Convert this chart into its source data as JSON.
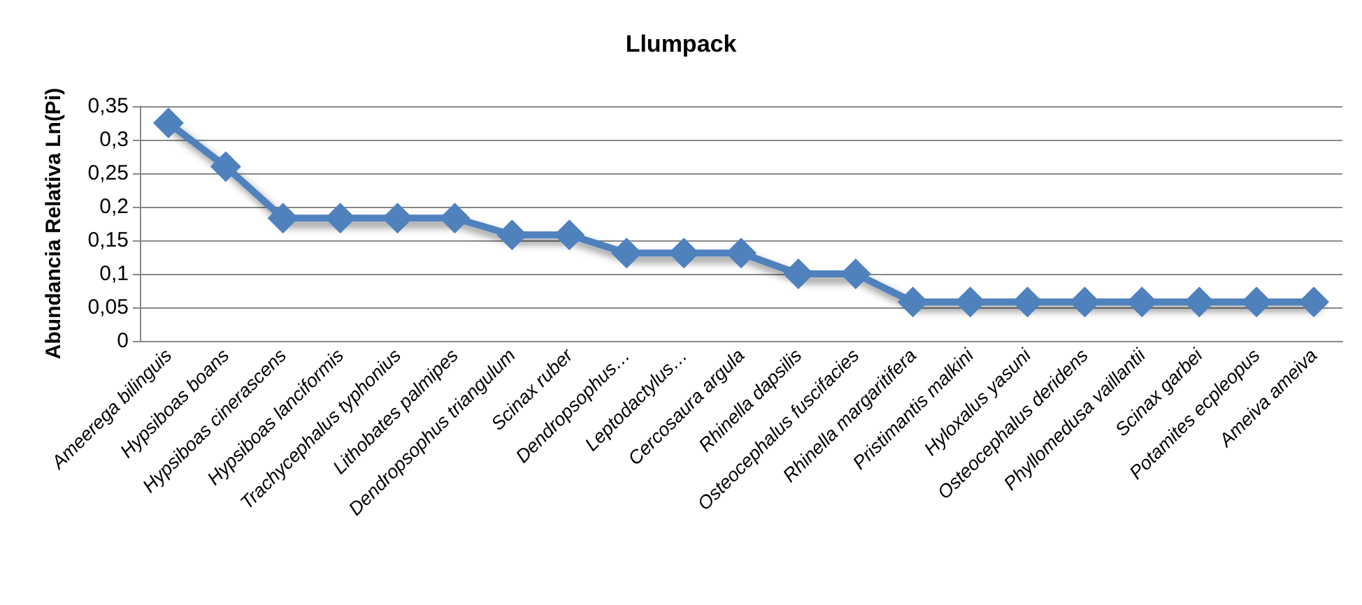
{
  "chart_data": {
    "type": "line",
    "title": "Llumpack",
    "ylabel": "Abundancia Relativa Ln(Pi)",
    "categories": [
      "Ameerega bilinguis",
      "Hypsiboas boans",
      "Hypsiboas cinerascens",
      "Hypsiboas lanciformis",
      "Trachycephalus typhonius",
      "Lithobates palmipes",
      "Dendropsophus triangulum",
      "Scinax ruber",
      "Dendropsophus…",
      "Leptodactylus…",
      "Cercosaura argula",
      "Rhinella dapsilis",
      "Osteocephalus fuscifacies",
      "Rhinella margaritifera",
      "Pristimantis malkini",
      "Hyloxalus yasuni",
      "Osteocephalus deridens",
      "Phyllomedusa vaillantii",
      "Scinax garbei",
      "Potamites ecpleopus",
      "Ameiva ameiva"
    ],
    "series": [
      {
        "color": "#4f81bd",
        "values": [
          0.325,
          0.26,
          0.183,
          0.183,
          0.183,
          0.183,
          0.158,
          0.158,
          0.131,
          0.131,
          0.131,
          0.1,
          0.1,
          0.058,
          0.058,
          0.058,
          0.058,
          0.058,
          0.058,
          0.058,
          0.058
        ]
      }
    ],
    "ylim": [
      0,
      0.35
    ],
    "yticks": [
      {
        "value": 0,
        "label": "0"
      },
      {
        "value": 0.05,
        "label": "0,05"
      },
      {
        "value": 0.1,
        "label": "0,1"
      },
      {
        "value": 0.15,
        "label": "0,15"
      },
      {
        "value": 0.2,
        "label": "0,2"
      },
      {
        "value": 0.25,
        "label": "0,25"
      },
      {
        "value": 0.3,
        "label": "0,3"
      },
      {
        "value": 0.35,
        "label": "0,35"
      }
    ],
    "grid": "y",
    "marker": "diamond",
    "line_style": "solid"
  }
}
